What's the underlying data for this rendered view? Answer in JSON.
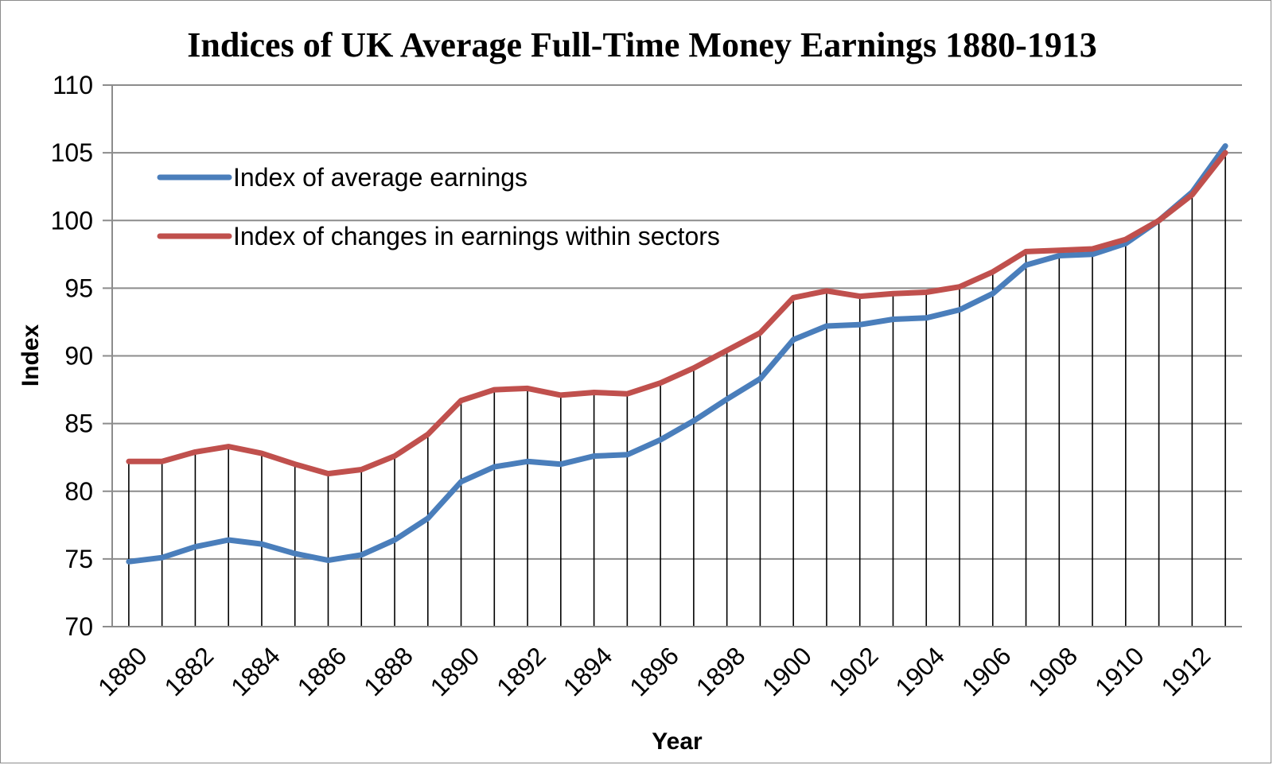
{
  "chart_data": {
    "type": "line",
    "title": "Indices of UK Average Full-Time Money Earnings 1880-1913",
    "xlabel": "Year",
    "ylabel": "Index",
    "ylim": [
      70,
      110
    ],
    "y_ticks": [
      "70",
      "75",
      "80",
      "85",
      "90",
      "95",
      "100",
      "105",
      "110"
    ],
    "x_tick_labels": [
      "1880",
      "1882",
      "1884",
      "1886",
      "1888",
      "1890",
      "1892",
      "1894",
      "1896",
      "1898",
      "1900",
      "1902",
      "1904",
      "1906",
      "1908",
      "1910",
      "1912"
    ],
    "x": [
      1880,
      1881,
      1882,
      1883,
      1884,
      1885,
      1886,
      1887,
      1888,
      1889,
      1890,
      1891,
      1892,
      1893,
      1894,
      1895,
      1896,
      1897,
      1898,
      1899,
      1900,
      1901,
      1902,
      1903,
      1904,
      1905,
      1906,
      1907,
      1908,
      1909,
      1910,
      1911,
      1912,
      1913
    ],
    "drop_lines": true,
    "grid": "horizontal",
    "legend_position": "upper-left",
    "series": [
      {
        "name": "Index of average earnings",
        "color": "#4a7ebb",
        "values": [
          74.8,
          75.1,
          75.9,
          76.4,
          76.1,
          75.4,
          74.9,
          75.3,
          76.4,
          78.0,
          80.7,
          81.8,
          82.2,
          82.0,
          82.6,
          82.7,
          83.8,
          85.2,
          86.8,
          88.3,
          91.2,
          92.2,
          92.3,
          92.7,
          92.8,
          93.4,
          94.6,
          96.7,
          97.4,
          97.5,
          98.3,
          100.0,
          102.1,
          105.5
        ]
      },
      {
        "name": "Index of changes in earnings within sectors",
        "color": "#c0504d",
        "values": [
          82.2,
          82.2,
          82.9,
          83.3,
          82.8,
          82.0,
          81.3,
          81.6,
          82.6,
          84.2,
          86.7,
          87.5,
          87.6,
          87.1,
          87.3,
          87.2,
          88.0,
          89.1,
          90.4,
          91.7,
          94.3,
          94.8,
          94.4,
          94.6,
          94.7,
          95.1,
          96.2,
          97.7,
          97.8,
          97.9,
          98.6,
          100.0,
          101.9,
          105.0
        ]
      }
    ]
  }
}
